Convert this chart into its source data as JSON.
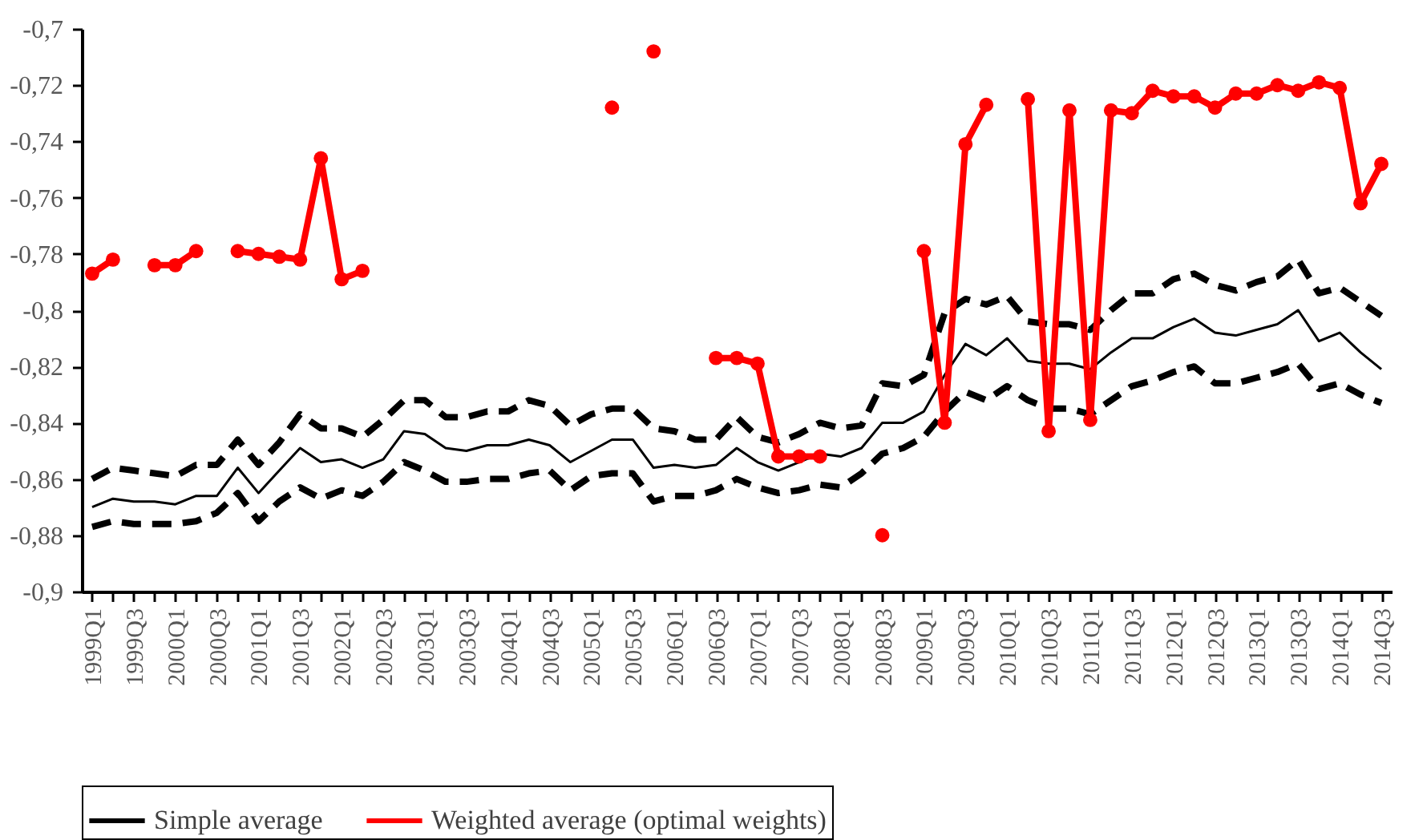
{
  "chart_data": {
    "type": "line",
    "categories": [
      "1999Q1",
      null,
      "1999Q3",
      null,
      "2000Q1",
      null,
      "2000Q3",
      null,
      "2001Q1",
      null,
      "2001Q3",
      null,
      "2002Q1",
      null,
      "2002Q3",
      null,
      "2003Q1",
      null,
      "2003Q3",
      null,
      "2004Q1",
      null,
      "2004Q3",
      null,
      "2005Q1",
      null,
      "2005Q3",
      null,
      "2006Q1",
      null,
      "2006Q3",
      null,
      "2007Q1",
      null,
      "2007Q3",
      null,
      "2008Q1",
      null,
      "2008Q3",
      null,
      "2009Q1",
      null,
      "2009Q3",
      null,
      "2010Q1",
      null,
      "2010Q3",
      null,
      "2011Q1",
      null,
      "2011Q3",
      null,
      "2012Q1",
      null,
      "2012Q3",
      null,
      "2013Q1",
      null,
      "2013Q3",
      null,
      "2014Q1",
      null,
      "2014Q3"
    ],
    "series": [
      {
        "color": "#000000",
        "line_style": "dashed",
        "marker": "none",
        "values": [
          -0.86,
          -0.856,
          -0.857,
          -0.858,
          -0.859,
          -0.855,
          -0.855,
          -0.846,
          -0.855,
          -0.847,
          -0.837,
          -0.842,
          -0.842,
          -0.845,
          -0.839,
          -0.832,
          -0.832,
          -0.838,
          -0.838,
          -0.836,
          -0.836,
          -0.832,
          -0.834,
          -0.841,
          -0.837,
          -0.835,
          -0.835,
          -0.842,
          -0.843,
          -0.846,
          -0.846,
          -0.838,
          -0.845,
          -0.847,
          -0.844,
          -0.84,
          -0.842,
          -0.841,
          -0.826,
          -0.827,
          -0.823,
          -0.801,
          -0.796,
          -0.798,
          -0.795,
          -0.804,
          -0.805,
          -0.805,
          -0.807,
          -0.8,
          -0.794,
          -0.794,
          -0.789,
          -0.787,
          -0.791,
          -0.793,
          -0.79,
          -0.788,
          -0.782,
          -0.794,
          -0.792,
          -0.797,
          -0.802
        ]
      },
      {
        "color": "#000000",
        "line_style": "dashed",
        "marker": "none",
        "values": [
          -0.877,
          -0.875,
          -0.876,
          -0.876,
          -0.876,
          -0.875,
          -0.872,
          -0.865,
          -0.875,
          -0.868,
          -0.863,
          -0.867,
          -0.864,
          -0.866,
          -0.861,
          -0.854,
          -0.857,
          -0.861,
          -0.861,
          -0.86,
          -0.86,
          -0.858,
          -0.857,
          -0.864,
          -0.859,
          -0.858,
          -0.858,
          -0.868,
          -0.866,
          -0.866,
          -0.864,
          -0.86,
          -0.863,
          -0.865,
          -0.864,
          -0.862,
          -0.863,
          -0.858,
          -0.851,
          -0.849,
          -0.845,
          -0.836,
          -0.829,
          -0.832,
          -0.827,
          -0.832,
          -0.835,
          -0.835,
          -0.837,
          -0.832,
          -0.827,
          -0.825,
          -0.822,
          -0.82,
          -0.826,
          -0.826,
          -0.824,
          -0.822,
          -0.819,
          -0.828,
          -0.826,
          -0.83,
          -0.833
        ]
      },
      {
        "name": "Simple average",
        "color": "#000000",
        "line_style": "solid",
        "marker": "none",
        "values": [
          -0.87,
          -0.867,
          -0.868,
          -0.868,
          -0.869,
          -0.866,
          -0.866,
          -0.856,
          -0.865,
          -0.857,
          -0.849,
          -0.854,
          -0.853,
          -0.856,
          -0.853,
          -0.843,
          -0.844,
          -0.849,
          -0.85,
          -0.848,
          -0.848,
          -0.846,
          -0.848,
          -0.854,
          -0.85,
          -0.846,
          -0.846,
          -0.856,
          -0.855,
          -0.856,
          -0.855,
          -0.849,
          -0.854,
          -0.857,
          -0.854,
          -0.851,
          -0.852,
          -0.849,
          -0.84,
          -0.84,
          -0.836,
          -0.823,
          -0.812,
          -0.816,
          -0.81,
          -0.818,
          -0.819,
          -0.819,
          -0.821,
          -0.815,
          -0.81,
          -0.81,
          -0.806,
          -0.803,
          -0.808,
          -0.809,
          -0.807,
          -0.805,
          -0.8,
          -0.811,
          -0.808,
          -0.815,
          -0.821
        ]
      },
      {
        "name": "Weighted average (optimal weights)",
        "color": "#ff0000",
        "line_style": "solid",
        "marker": "circle",
        "values": [
          -0.787,
          -0.782,
          null,
          -0.784,
          -0.784,
          -0.779,
          null,
          -0.779,
          -0.78,
          -0.781,
          -0.782,
          -0.746,
          -0.789,
          -0.786,
          null,
          null,
          null,
          null,
          null,
          null,
          null,
          null,
          null,
          null,
          null,
          -0.728,
          null,
          -0.708,
          null,
          null,
          -0.817,
          -0.817,
          -0.819,
          -0.852,
          -0.852,
          -0.852,
          null,
          null,
          -0.88,
          null,
          -0.779,
          -0.84,
          -0.741,
          -0.727,
          null,
          -0.725,
          -0.843,
          -0.729,
          -0.839,
          -0.729,
          -0.73,
          -0.722,
          -0.724,
          -0.724,
          -0.728,
          -0.723,
          -0.723,
          -0.72,
          -0.722,
          -0.719,
          -0.721,
          -0.762,
          -0.748
        ]
      }
    ],
    "ylim": [
      -0.9,
      -0.7
    ],
    "yticks": [
      {
        "value": -0.9,
        "label": "-0,9"
      },
      {
        "value": -0.88,
        "label": "-0,88"
      },
      {
        "value": -0.86,
        "label": "-0,86"
      },
      {
        "value": -0.84,
        "label": "-0,84"
      },
      {
        "value": -0.82,
        "label": "-0,82"
      },
      {
        "value": -0.8,
        "label": "-0,8"
      },
      {
        "value": -0.78,
        "label": "-0,78"
      },
      {
        "value": -0.76,
        "label": "-0,76"
      },
      {
        "value": -0.74,
        "label": "-0,74"
      },
      {
        "value": -0.72,
        "label": "-0,72"
      },
      {
        "value": -0.7,
        "label": "-0,7"
      }
    ],
    "grid": false,
    "legend": "bottom"
  }
}
